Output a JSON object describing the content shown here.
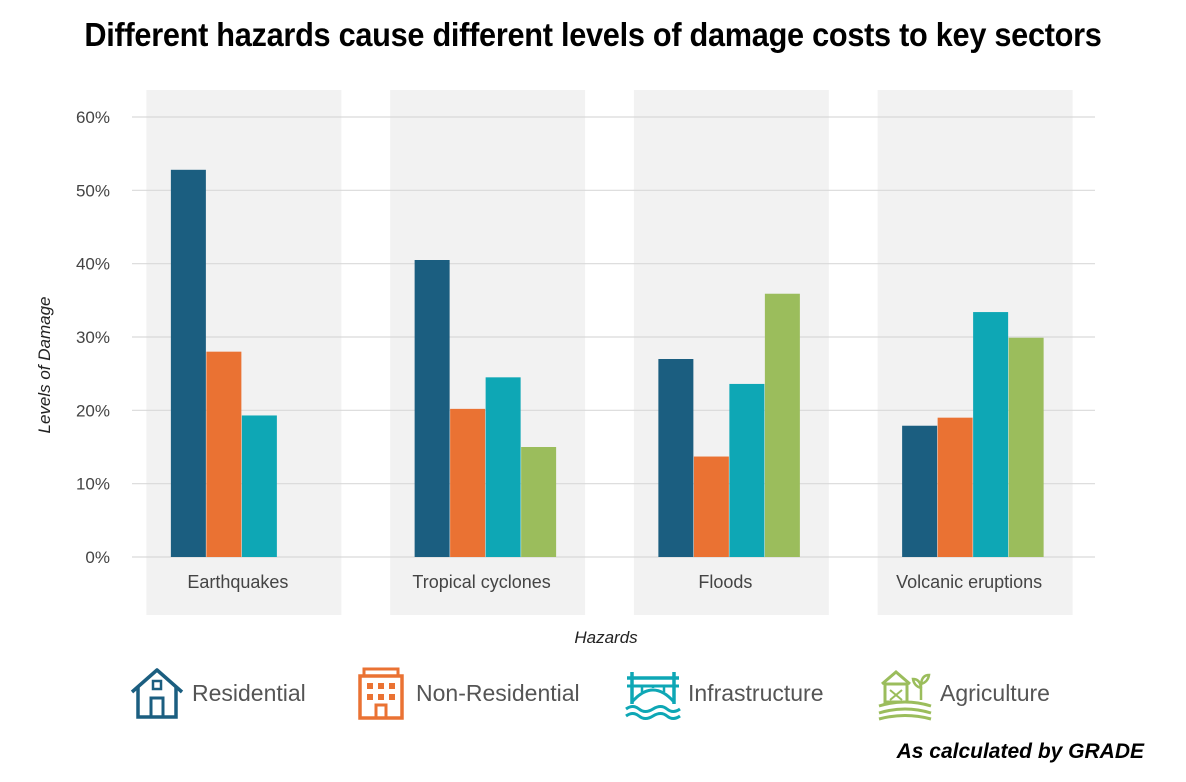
{
  "title": "Different hazards cause different levels of damage costs to key sectors",
  "footnote": "As calculated by GRADE",
  "colors": {
    "residential": "#1b5e80",
    "non_residential": "#ea7233",
    "infrastructure": "#0ea7b5",
    "agriculture": "#9bbd5c",
    "panel": "#f2f2f2",
    "grid": "#d9d9d9"
  },
  "legend": [
    {
      "label": "Residential",
      "icon": "house-icon",
      "color": "#1b5e80"
    },
    {
      "label": "Non-Residential",
      "icon": "building-icon",
      "color": "#ea7233"
    },
    {
      "label": "Infrastructure",
      "icon": "bridge-icon",
      "color": "#0ea7b5"
    },
    {
      "label": "Agriculture",
      "icon": "barn-icon",
      "color": "#9bbd5c"
    }
  ],
  "chart_data": {
    "type": "bar",
    "xlabel": "Hazards",
    "ylabel": "Levels of Damage",
    "ylim": [
      0,
      60
    ],
    "yticks": [
      "0%",
      "10%",
      "20%",
      "30%",
      "40%",
      "50%",
      "60%"
    ],
    "grid": true,
    "categories": [
      "Earthquakes",
      "Tropical cyclones",
      "Floods",
      "Volcanic eruptions"
    ],
    "series": [
      {
        "name": "Residential",
        "color": "#1b5e80",
        "values": [
          52.8,
          40.5,
          27.0,
          17.9
        ]
      },
      {
        "name": "Non-Residential",
        "color": "#ea7233",
        "values": [
          28.0,
          20.2,
          13.7,
          19.0
        ]
      },
      {
        "name": "Infrastructure",
        "color": "#0ea7b5",
        "values": [
          19.3,
          24.5,
          23.6,
          33.4
        ]
      },
      {
        "name": "Agriculture",
        "color": "#9bbd5c",
        "values": [
          null,
          15.0,
          35.9,
          29.9
        ]
      }
    ]
  }
}
